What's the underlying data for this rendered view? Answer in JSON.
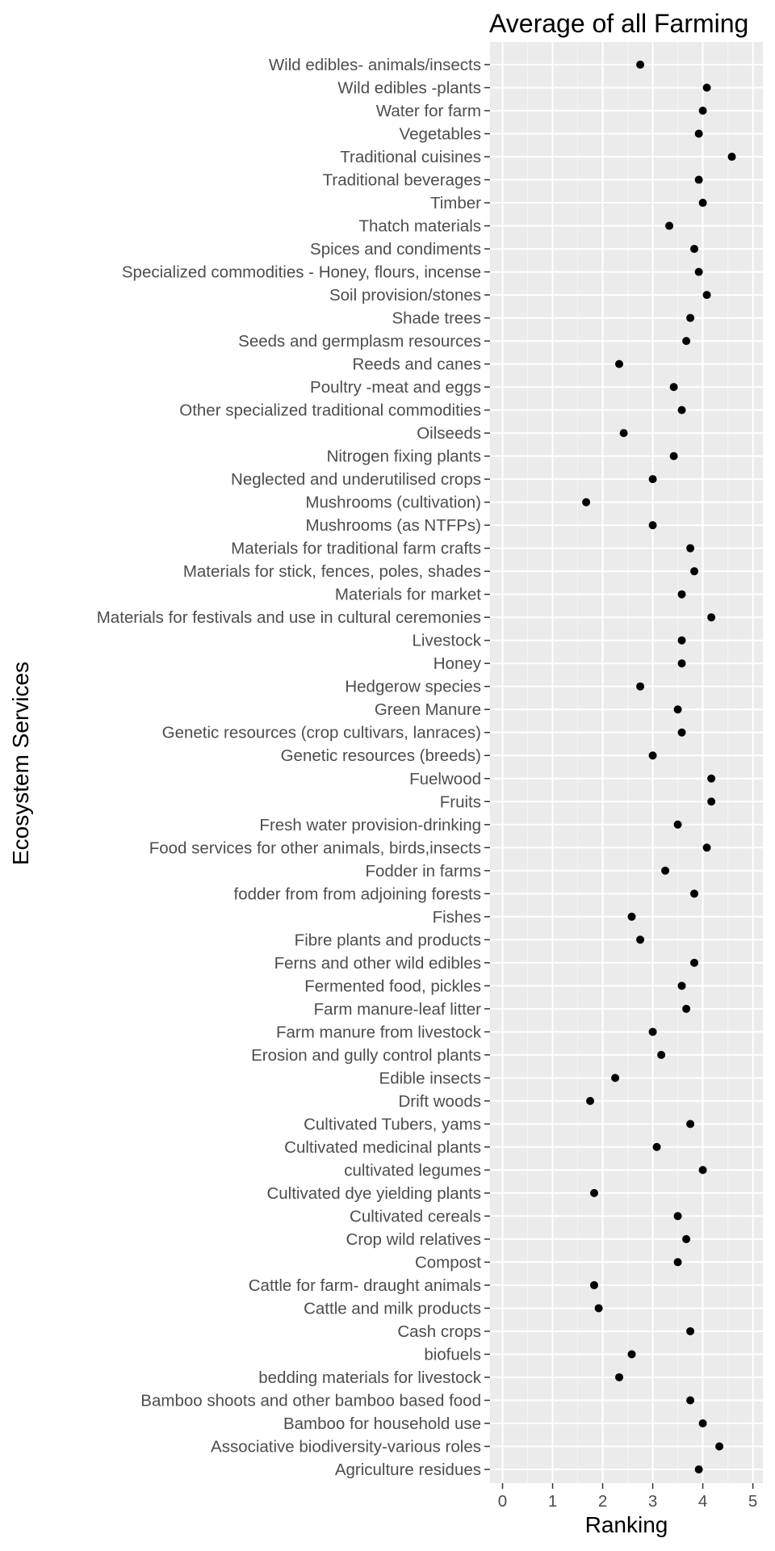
{
  "chart_data": {
    "type": "scatter",
    "title": "Average of all Farming",
    "xlabel": "Ranking",
    "ylabel": "Ecosystem Services",
    "xlim": [
      -0.25,
      5.2
    ],
    "xticks": [
      0,
      1,
      2,
      3,
      4,
      5
    ],
    "grid": true,
    "legend": "none",
    "background_color": "#ebebeb",
    "point_color": "#000000",
    "categories": [
      "Wild edibles- animals/insects",
      "Wild edibles -plants",
      "Water for farm",
      "Vegetables",
      "Traditional cuisines",
      "Traditional beverages",
      "Timber",
      "Thatch materials",
      "Spices and condiments",
      "Specialized commodities - Honey, flours, incense",
      "Soil provision/stones",
      "Shade trees",
      "Seeds and germplasm  resources",
      "Reeds and canes",
      "Poultry -meat and eggs",
      "Other specialized traditional commodities",
      "Oilseeds",
      "Nitrogen fixing plants",
      "Neglected and underutilised crops",
      "Mushrooms (cultivation)",
      "Mushrooms (as NTFPs)",
      "Materials for traditional farm crafts",
      "Materials for stick, fences, poles, shades",
      "Materials for market",
      "Materials for festivals and use in cultural ceremonies",
      "Livestock",
      "Honey",
      "Hedgerow species",
      "Green Manure",
      "Genetic resources (crop cultivars, lanraces)",
      "Genetic resources (breeds)",
      "Fuelwood",
      "Fruits",
      "Fresh water provision-drinking",
      "Food services for other animals, birds,insects",
      "Fodder in farms",
      "fodder from from adjoining forests",
      "Fishes",
      "Fibre plants and products",
      "Ferns and other wild edibles",
      "Fermented food, pickles",
      "Farm manure-leaf litter",
      "Farm manure from livestock",
      "Erosion and gully control plants",
      "Edible insects",
      "Drift woods",
      "Cultivated Tubers, yams",
      "Cultivated medicinal plants",
      "cultivated legumes",
      "Cultivated dye yielding plants",
      "Cultivated cereals",
      "Crop wild relatives",
      "Compost",
      "Cattle for farm- draught animals",
      "Cattle and milk products",
      "Cash crops",
      "biofuels",
      "bedding materials for livestock",
      "Bamboo shoots and other bamboo based food",
      "Bamboo for household use",
      "Associative biodiversity-various roles",
      "Agriculture residues"
    ],
    "values": [
      2.75,
      4.08,
      4.0,
      3.92,
      4.58,
      3.92,
      4.0,
      3.33,
      3.83,
      3.92,
      4.08,
      3.75,
      3.67,
      2.33,
      3.42,
      3.58,
      2.42,
      3.42,
      3.0,
      1.67,
      3.0,
      3.75,
      3.83,
      3.58,
      4.17,
      3.58,
      3.58,
      2.75,
      3.5,
      3.58,
      3.0,
      4.17,
      4.17,
      3.5,
      4.08,
      3.25,
      3.83,
      2.58,
      2.75,
      3.83,
      3.58,
      3.67,
      3.0,
      3.17,
      2.25,
      1.75,
      3.75,
      3.08,
      4.0,
      1.83,
      3.5,
      3.67,
      3.5,
      1.83,
      1.92,
      3.75,
      2.58,
      2.33,
      3.75,
      4.0,
      4.33,
      3.92
    ]
  }
}
